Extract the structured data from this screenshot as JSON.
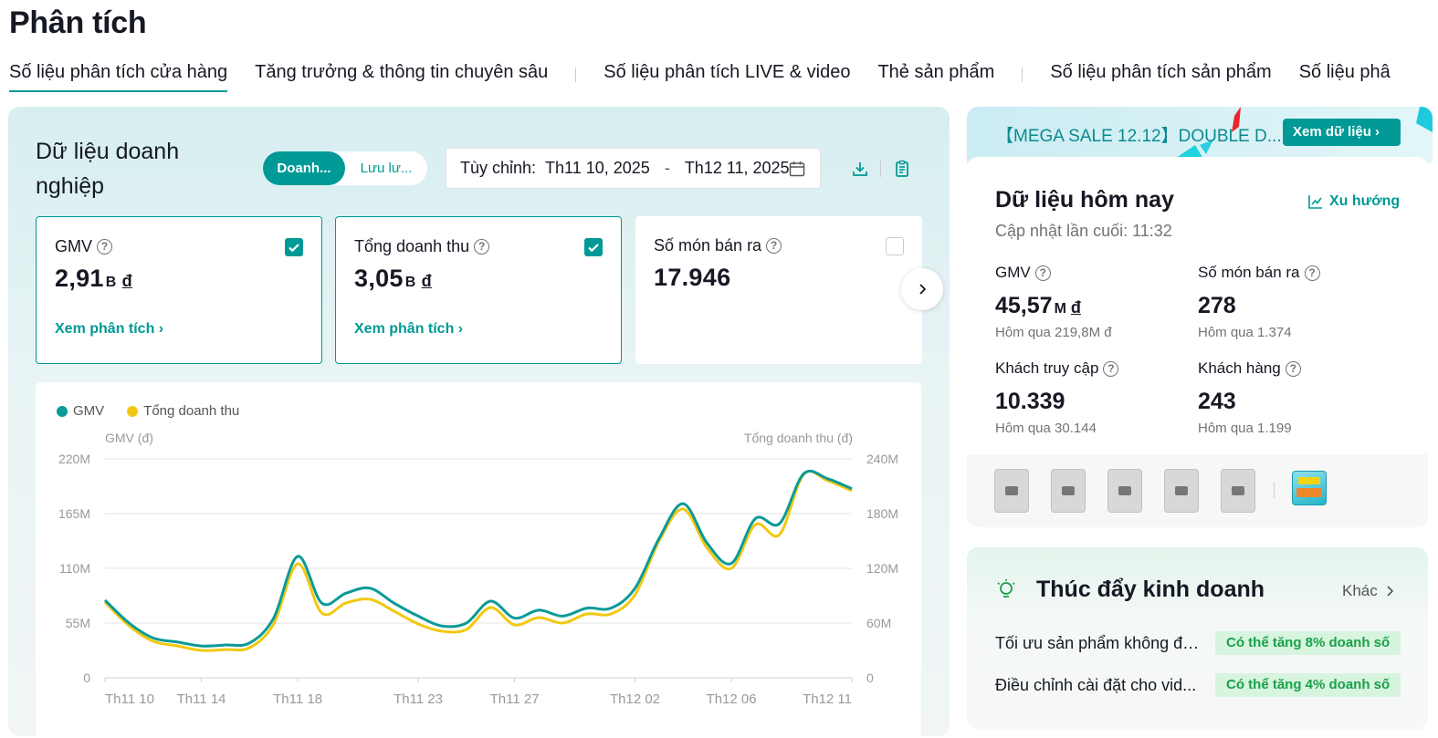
{
  "page_title": "Phân tích",
  "tabs": [
    {
      "label": "Số liệu phân tích cửa hàng"
    },
    {
      "label": "Tăng trưởng & thông tin chuyên sâu"
    },
    {
      "label": "Số liệu phân tích LIVE & video"
    },
    {
      "label": "Thẻ sản phẩm"
    },
    {
      "label": "Số liệu phân tích sản phẩm"
    },
    {
      "label": "Số liệu phâ"
    }
  ],
  "business": {
    "title": "Dữ liệu doanh nghiệp",
    "segment": {
      "options": [
        "Doanh...",
        "Lưu lư..."
      ],
      "selected": 0
    },
    "date_range": {
      "label": "Tùy chỉnh:",
      "start": "Th11 10, 2025",
      "end": "Th12 11, 2025",
      "separator": "-"
    },
    "metrics": [
      {
        "label": "GMV",
        "value": "2,91",
        "unit": "B",
        "currency": "đ",
        "link": "Xem phân tích ›",
        "checked": true
      },
      {
        "label": "Tổng doanh thu",
        "value": "3,05",
        "unit": "B",
        "currency": "đ",
        "link": "Xem phân tích ›",
        "checked": true
      },
      {
        "label": "Số món bán ra",
        "value": "17.946",
        "unit": "",
        "currency": "",
        "link": "",
        "checked": false
      }
    ]
  },
  "chart_data": {
    "type": "line",
    "legend_position": "top-left",
    "ylabel_left": "GMV (đ)",
    "ylabel_right": "Tổng doanh thu (đ)",
    "y_ticks_left": [
      "220M",
      "165M",
      "110M",
      "55M",
      "0"
    ],
    "y_ticks_right": [
      "240M",
      "180M",
      "120M",
      "60M",
      "0"
    ],
    "ylim_left": [
      0,
      220
    ],
    "ylim_right": [
      0,
      240
    ],
    "x_ticks": [
      "Th11 10",
      "Th11 14",
      "Th11 18",
      "Th11 23",
      "Th11 27",
      "Th12 02",
      "Th12 06",
      "Th12 11"
    ],
    "grid": true,
    "x": [
      "Th11 10",
      "Th11 11",
      "Th11 12",
      "Th11 13",
      "Th11 14",
      "Th11 15",
      "Th11 16",
      "Th11 17",
      "Th11 18",
      "Th11 19",
      "Th11 20",
      "Th11 21",
      "Th11 22",
      "Th11 23",
      "Th11 24",
      "Th11 25",
      "Th11 26",
      "Th11 27",
      "Th11 28",
      "Th11 29",
      "Th11 30",
      "Th12 01",
      "Th12 02",
      "Th12 03",
      "Th12 04",
      "Th12 05",
      "Th12 06",
      "Th12 07",
      "Th12 08",
      "Th12 09",
      "Th12 10",
      "Th12 11"
    ],
    "series": [
      {
        "name": "GMV",
        "color": "#0b9a97",
        "values": [
          78,
          55,
          40,
          36,
          32,
          33,
          35,
          60,
          122,
          75,
          85,
          90,
          75,
          62,
          52,
          55,
          77,
          60,
          68,
          62,
          70,
          70,
          90,
          140,
          175,
          135,
          115,
          160,
          155,
          205,
          200,
          190
        ]
      },
      {
        "name": "Tổng doanh thu",
        "color": "#f2c811",
        "values": [
          83,
          57,
          40,
          35,
          30,
          31,
          33,
          59,
          125,
          71,
          82,
          86,
          73,
          59,
          51,
          53,
          77,
          58,
          66,
          60,
          70,
          70,
          91,
          150,
          185,
          142,
          120,
          168,
          157,
          223,
          216,
          205
        ]
      }
    ]
  },
  "banner": {
    "text": "【MEGA SALE 12.12】DOUBLE D...",
    "button": "Xem dữ liệu ›"
  },
  "today": {
    "title": "Dữ liệu hôm nay",
    "updated": "Cập nhật lần cuối: 11:32",
    "trend_link": "Xu hướng",
    "metrics": [
      {
        "label": "GMV",
        "value": "45,57",
        "unit": "M",
        "currency": "đ",
        "sub": "Hôm qua 219,8M đ"
      },
      {
        "label": "Số món bán ra",
        "value": "278",
        "unit": "",
        "currency": "",
        "sub": "Hôm qua 1.374"
      },
      {
        "label": "Khách truy cập",
        "value": "10.339",
        "unit": "",
        "currency": "",
        "sub": "Hôm qua 30.144"
      },
      {
        "label": "Khách hàng",
        "value": "243",
        "unit": "",
        "currency": "",
        "sub": "Hôm qua 1.199"
      }
    ]
  },
  "boost": {
    "title": "Thúc đẩy kinh doanh",
    "more": "Khác",
    "rows": [
      {
        "text": "Tối ưu sản phẩm không đá...",
        "badge": "Có thể tăng 8% doanh số"
      },
      {
        "text": "Điều chỉnh cài đặt cho vid...",
        "badge": "Có thể tăng 4% doanh số"
      }
    ]
  },
  "colors": {
    "accent": "#009995",
    "series_gmv": "#0b9a97",
    "series_revenue": "#f2c811",
    "badge_bg": "#d6f4de",
    "badge_text": "#1aa04a"
  }
}
